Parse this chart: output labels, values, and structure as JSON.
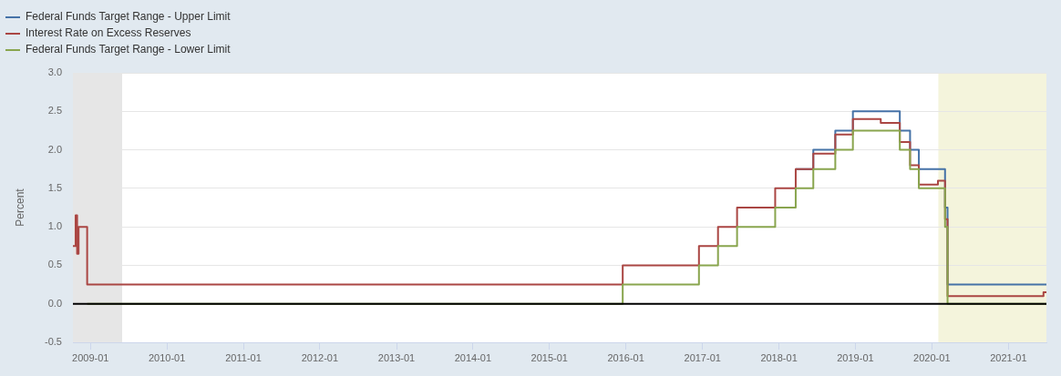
{
  "chart_data": {
    "type": "step",
    "ylabel": "Percent",
    "series": [
      {
        "name": "Federal Funds Target Range - Upper Limit",
        "color": "#4572a7",
        "x": [
          "2018-03-22",
          "2018-06-14",
          "2018-09-27",
          "2018-12-20",
          "2019-08-01",
          "2019-09-19",
          "2019-10-31",
          "2020-03-04",
          "2020-03-16",
          "2021-07-01"
        ],
        "values": [
          1.75,
          2,
          2.25,
          2.5,
          2.25,
          2,
          1.75,
          1.25,
          0.25,
          0.25
        ]
      },
      {
        "name": "Interest Rate on Excess Reserves",
        "color": "#aa4643",
        "x": [
          "2008-10-09",
          "2008-10-22",
          "2008-10-29",
          "2008-11-05",
          "2008-12-16",
          "2015-12-17",
          "2016-12-15",
          "2017-03-16",
          "2017-06-15",
          "2017-12-14",
          "2018-03-22",
          "2018-06-14",
          "2018-09-27",
          "2018-12-20",
          "2019-05-02",
          "2019-08-01",
          "2019-09-19",
          "2019-10-31",
          "2020-01-30",
          "2020-03-04",
          "2020-03-16",
          "2021-06-17",
          "2021-07-01"
        ],
        "values": [
          0.75,
          1.15,
          0.65,
          1,
          0.25,
          0.5,
          0.75,
          1,
          1.25,
          1.5,
          1.75,
          1.95,
          2.2,
          2.4,
          2.35,
          2.1,
          1.8,
          1.55,
          1.6,
          1.1,
          0.1,
          0.15,
          0.15
        ]
      },
      {
        "name": "Federal Funds Target Range - Lower Limit",
        "color": "#89a54e",
        "x": [
          "2008-12-16",
          "2015-12-17",
          "2016-12-15",
          "2017-03-16",
          "2017-06-15",
          "2017-12-14",
          "2018-03-22",
          "2018-06-14",
          "2018-09-27",
          "2018-12-20",
          "2019-08-01",
          "2019-09-19",
          "2019-10-31",
          "2020-03-04",
          "2020-03-16",
          "2021-07-01"
        ],
        "values": [
          0,
          0.25,
          0.5,
          0.75,
          1,
          1.25,
          1.5,
          1.75,
          2,
          2.25,
          2,
          1.75,
          1.5,
          1,
          0,
          0
        ]
      }
    ],
    "xlim": [
      "2008-10-09",
      "2021-07-01"
    ],
    "xticks": [
      "2009-01",
      "2010-01",
      "2011-01",
      "2012-01",
      "2013-01",
      "2014-01",
      "2015-01",
      "2016-01",
      "2017-01",
      "2018-01",
      "2019-01",
      "2020-01",
      "2021-01"
    ],
    "ylim": [
      -0.5,
      3
    ],
    "yticks": [
      {
        "value": -0.5,
        "label": "-0.5"
      },
      {
        "value": 0,
        "label": "0.0"
      },
      {
        "value": 0.5,
        "label": "0.5"
      },
      {
        "value": 1,
        "label": "1.0"
      },
      {
        "value": 1.5,
        "label": "1.5"
      },
      {
        "value": 2,
        "label": "2.0"
      },
      {
        "value": 2.5,
        "label": "2.5"
      },
      {
        "value": 3,
        "label": "3.0"
      }
    ],
    "bands": [
      {
        "axis": "x",
        "from": "2008-10-09",
        "to": "2009-06-01",
        "color": "#e6e6e6"
      },
      {
        "axis": "x",
        "from": "2020-02-01",
        "to": "2021-07-01",
        "color": "#f4f4dc"
      }
    ],
    "ref_lines": [
      {
        "axis": "y",
        "value": 0,
        "color": "#000000"
      }
    ],
    "grid": "y",
    "legend": "top left",
    "marker": "none"
  }
}
